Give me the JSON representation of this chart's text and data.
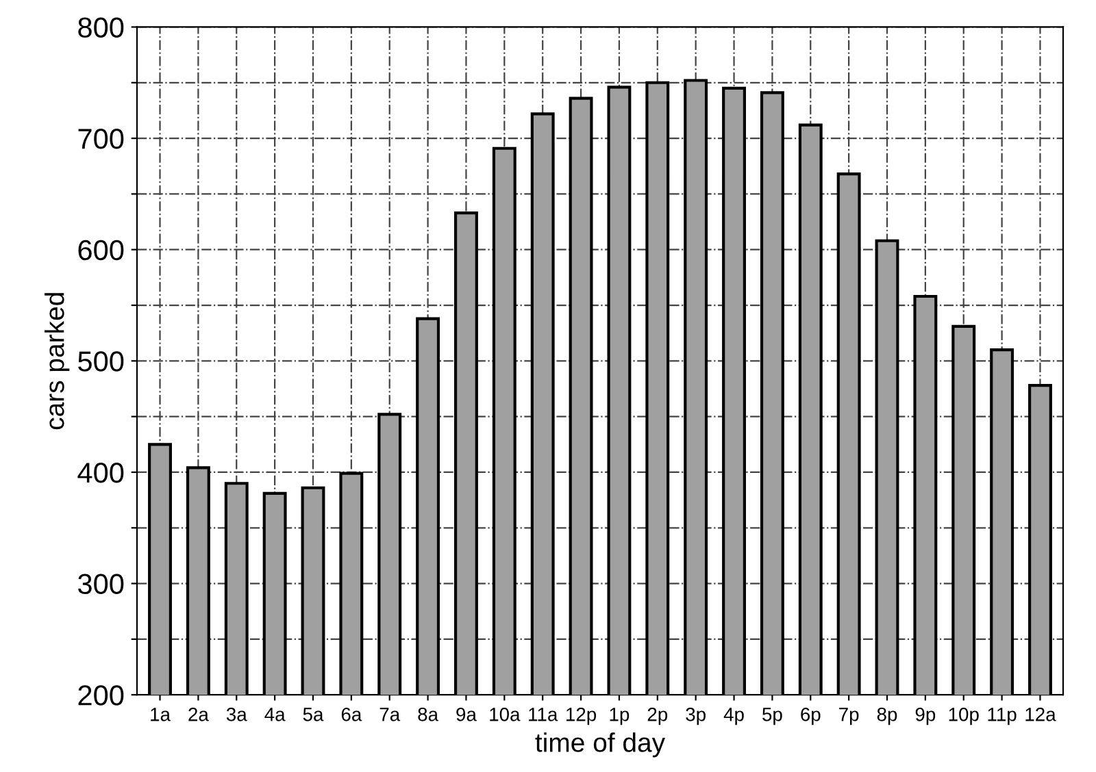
{
  "chart_data": {
    "type": "bar",
    "xlabel": "time of day",
    "ylabel": "cars parked",
    "categories": [
      "1a",
      "2a",
      "3a",
      "4a",
      "5a",
      "6a",
      "7a",
      "8a",
      "9a",
      "10a",
      "11a",
      "12p",
      "1p",
      "2p",
      "3p",
      "4p",
      "5p",
      "6p",
      "7p",
      "8p",
      "9p",
      "10p",
      "11p",
      "12a"
    ],
    "values": [
      425,
      404,
      390,
      381,
      386,
      399,
      452,
      538,
      633,
      691,
      722,
      736,
      746,
      750,
      752,
      745,
      741,
      712,
      668,
      608,
      558,
      531,
      510,
      478
    ],
    "color": "#a0a0a0",
    "ylim": [
      200,
      800
    ],
    "yticks": [
      200,
      {
        "value": 250,
        "label": null
      },
      300,
      {
        "value": 350,
        "label": null
      },
      400,
      {
        "value": 450,
        "label": null
      },
      500,
      {
        "value": 550,
        "label": null
      },
      600,
      {
        "value": 650,
        "label": null
      },
      700,
      {
        "value": 750,
        "label": null
      },
      800
    ],
    "grid": true
  }
}
